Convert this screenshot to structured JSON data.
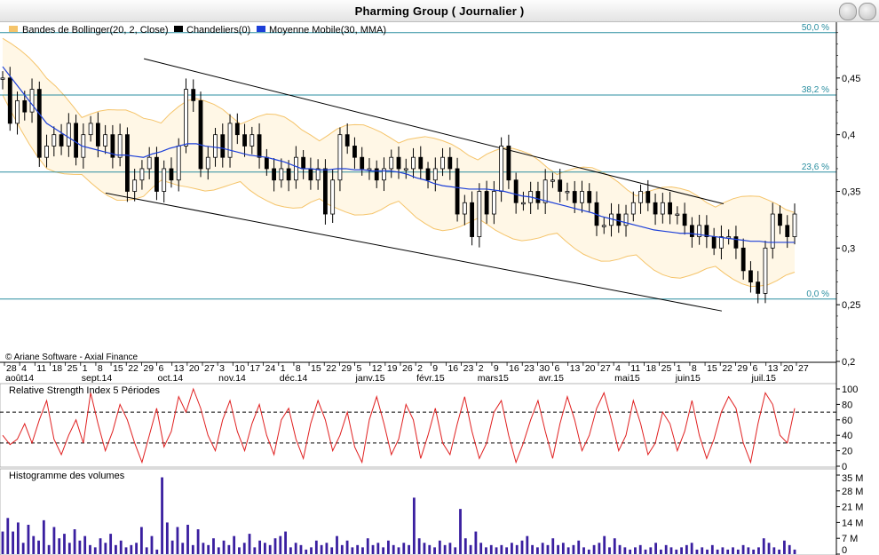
{
  "window": {
    "title": "Pharming Group  ( Journalier )"
  },
  "legend": [
    {
      "label": "Bandes de Bollinger(20, 2, Close)",
      "color": "#f5c46a"
    },
    {
      "label": "Chandeliers(0)",
      "color": "#000000"
    },
    {
      "label": "Moyenne Mobile(30, MMA)",
      "color": "#1c3fd8"
    }
  ],
  "copyright": "© Ariane Software - Axial Finance",
  "colors": {
    "fib_line": "#2a8ea0",
    "bollinger_fill": "#fff7e6",
    "bollinger_line": "#f5c46a",
    "ma_line": "#1c3fd8",
    "rsi_line": "#e02020",
    "volume_bar": "#3a1fa0",
    "grid": "#888888"
  },
  "chart_data": [
    {
      "type": "candlestick",
      "title": "Pharming Group  ( Journalier )",
      "ylim": [
        0.2,
        0.5
      ],
      "yticks": [
        "0,45",
        "0,4",
        "0,35",
        "0,3",
        "0,25",
        "0,2"
      ],
      "ytick_values": [
        0.45,
        0.4,
        0.35,
        0.3,
        0.25,
        0.2
      ],
      "fibonacci_levels": [
        {
          "label": "50,0 %",
          "value": 0.49
        },
        {
          "label": "38,2 %",
          "value": 0.435
        },
        {
          "label": "23,6 %",
          "value": 0.367
        },
        {
          "label": "0,0 %",
          "value": 0.255
        }
      ],
      "day_ticks": [
        "28",
        "4",
        "11",
        "18",
        "25",
        "1",
        "8",
        "15",
        "22",
        "29",
        "6",
        "13",
        "20",
        "27",
        "3",
        "10",
        "17",
        "24",
        "1",
        "8",
        "15",
        "22",
        "29",
        "5",
        "12",
        "19",
        "26",
        "2",
        "9",
        "16",
        "23",
        "2",
        "9",
        "16",
        "23",
        "30",
        "6",
        "13",
        "20",
        "27",
        "4",
        "11",
        "18",
        "25",
        "1",
        "8",
        "15",
        "22",
        "29",
        "6",
        "13",
        "20",
        "27"
      ],
      "month_labels": [
        "août14",
        "sept.14",
        "oct.14",
        "nov.14",
        "déc.14",
        "janv.15",
        "févr.15",
        "mars15",
        "avr.15",
        "mai15",
        "juin15",
        "juil.15"
      ],
      "month_tick_index": [
        0,
        5,
        10,
        14,
        18,
        23,
        27,
        31,
        35,
        40,
        44,
        49
      ],
      "close": [
        0.45,
        0.41,
        0.43,
        0.42,
        0.44,
        0.38,
        0.39,
        0.4,
        0.39,
        0.41,
        0.38,
        0.4,
        0.41,
        0.39,
        0.4,
        0.38,
        0.4,
        0.35,
        0.36,
        0.37,
        0.38,
        0.35,
        0.37,
        0.36,
        0.39,
        0.44,
        0.43,
        0.37,
        0.38,
        0.4,
        0.38,
        0.41,
        0.4,
        0.39,
        0.4,
        0.38,
        0.37,
        0.36,
        0.37,
        0.36,
        0.38,
        0.37,
        0.36,
        0.37,
        0.33,
        0.36,
        0.4,
        0.39,
        0.38,
        0.37,
        0.37,
        0.36,
        0.37,
        0.38,
        0.37,
        0.37,
        0.38,
        0.37,
        0.36,
        0.37,
        0.38,
        0.37,
        0.33,
        0.34,
        0.31,
        0.35,
        0.33,
        0.35,
        0.39,
        0.36,
        0.34,
        0.34,
        0.35,
        0.34,
        0.36,
        0.36,
        0.35,
        0.35,
        0.34,
        0.35,
        0.34,
        0.32,
        0.32,
        0.33,
        0.32,
        0.33,
        0.34,
        0.35,
        0.34,
        0.33,
        0.34,
        0.33,
        0.33,
        0.32,
        0.31,
        0.32,
        0.31,
        0.3,
        0.31,
        0.31,
        0.3,
        0.28,
        0.27,
        0.26,
        0.3,
        0.33,
        0.32,
        0.31,
        0.33
      ],
      "ma30": [
        0.46,
        0.45,
        0.44,
        0.43,
        0.42,
        0.41,
        0.405,
        0.4,
        0.395,
        0.39,
        0.388,
        0.386,
        0.384,
        0.382,
        0.382,
        0.381,
        0.38,
        0.383,
        0.385,
        0.388,
        0.39,
        0.392,
        0.392,
        0.39,
        0.389,
        0.388,
        0.386,
        0.384,
        0.382,
        0.381,
        0.38,
        0.378,
        0.376,
        0.373,
        0.37,
        0.37,
        0.369,
        0.369,
        0.37,
        0.37,
        0.369,
        0.369,
        0.368,
        0.368,
        0.368,
        0.367,
        0.365,
        0.362,
        0.36,
        0.357,
        0.355,
        0.354,
        0.353,
        0.352,
        0.352,
        0.352,
        0.351,
        0.35,
        0.348,
        0.346,
        0.345,
        0.343,
        0.341,
        0.339,
        0.337,
        0.335,
        0.333,
        0.331,
        0.328,
        0.326,
        0.324,
        0.322,
        0.32,
        0.318,
        0.316,
        0.315,
        0.314,
        0.313,
        0.313,
        0.312,
        0.311,
        0.31,
        0.309,
        0.308,
        0.307,
        0.306,
        0.306,
        0.305,
        0.305,
        0.305,
        0.305
      ],
      "trendline_upper": [
        [
          0.1784,
          0.467
        ],
        [
          0.9102,
          0.339
        ]
      ],
      "trendline_lower": [
        [
          0.13,
          0.3485
        ],
        [
          0.908,
          0.2445
        ]
      ],
      "legend": [
        "Bandes de Bollinger(20, 2, Close)",
        "Chandeliers(0)",
        "Moyenne Mobile(30, MMA)"
      ]
    },
    {
      "type": "line",
      "title": "Relative Strength Index 5 Périodes",
      "ylim": [
        0,
        100
      ],
      "yticks": [
        "100",
        "80",
        "60",
        "40",
        "20",
        "0"
      ],
      "ytick_values": [
        100,
        80,
        60,
        40,
        20,
        0
      ],
      "reference_lines": [
        70,
        30
      ],
      "values": [
        40,
        28,
        35,
        55,
        30,
        60,
        85,
        35,
        15,
        40,
        60,
        30,
        95,
        55,
        20,
        45,
        80,
        60,
        30,
        5,
        40,
        75,
        25,
        45,
        90,
        70,
        100,
        75,
        40,
        20,
        60,
        85,
        45,
        20,
        55,
        80,
        40,
        15,
        60,
        75,
        35,
        10,
        55,
        85,
        60,
        20,
        40,
        70,
        25,
        5,
        60,
        90,
        55,
        15,
        35,
        80,
        60,
        10,
        40,
        75,
        30,
        15,
        55,
        90,
        45,
        10,
        30,
        70,
        85,
        40,
        5,
        30,
        60,
        85,
        45,
        10,
        55,
        90,
        60,
        20,
        40,
        75,
        95,
        60,
        20,
        40,
        85,
        55,
        15,
        30,
        70,
        55,
        20,
        45,
        85,
        40,
        10,
        35,
        70,
        90,
        75,
        30,
        5,
        55,
        95,
        80,
        40,
        30,
        75
      ]
    },
    {
      "type": "bar",
      "title": "Histogramme des volumes",
      "ylim": [
        0,
        35
      ],
      "yticks": [
        "35 M",
        "28 M",
        "21 M",
        "14 M",
        "7 M",
        "0"
      ],
      "ytick_values": [
        35,
        28,
        21,
        14,
        7,
        0
      ],
      "unit": "M",
      "values": [
        10,
        16,
        10,
        14,
        5,
        13,
        8,
        6,
        15,
        4,
        12,
        7,
        9,
        5,
        11,
        6,
        8,
        4,
        3,
        7,
        5,
        9,
        4,
        6,
        3,
        4,
        5,
        12,
        3,
        8,
        2,
        34,
        14,
        6,
        12,
        5,
        13,
        4,
        11,
        5,
        4,
        7,
        3,
        6,
        4,
        8,
        3,
        5,
        9,
        3,
        6,
        5,
        4,
        7,
        8,
        10,
        3,
        5,
        4,
        2,
        3,
        6,
        4,
        5,
        3,
        8,
        4,
        6,
        3,
        4,
        3,
        7,
        4,
        5,
        3,
        6,
        4,
        3,
        5,
        4,
        25,
        7,
        5,
        4,
        3,
        6,
        4,
        5,
        3,
        20,
        7,
        4,
        10,
        5,
        3,
        4,
        3,
        4,
        3,
        5,
        4,
        6,
        8,
        4,
        3,
        5,
        4,
        7,
        4,
        5,
        3,
        4,
        6,
        3,
        2,
        4,
        5,
        8,
        3,
        7,
        4,
        3,
        2,
        3,
        4,
        2,
        3,
        5,
        2,
        4,
        3,
        2,
        3,
        4,
        5,
        2,
        3,
        2,
        4,
        2,
        3,
        2,
        3,
        2,
        4,
        3,
        2,
        3,
        7,
        5,
        3,
        2,
        6,
        4,
        2
      ]
    }
  ]
}
